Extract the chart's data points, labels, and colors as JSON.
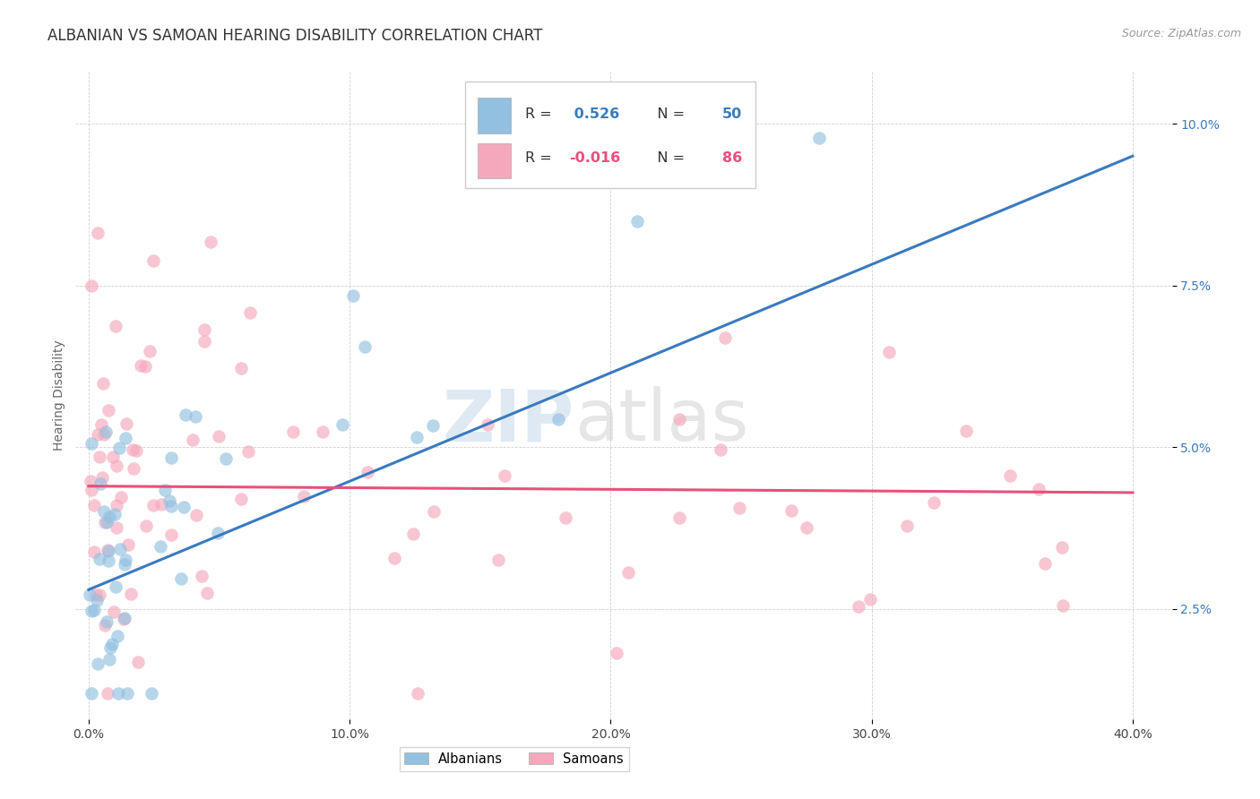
{
  "title": "ALBANIAN VS SAMOAN HEARING DISABILITY CORRELATION CHART",
  "source": "Source: ZipAtlas.com",
  "ylabel": "Hearing Disability",
  "xlabel_vals": [
    0.0,
    0.1,
    0.2,
    0.3,
    0.4
  ],
  "ylabel_vals": [
    0.025,
    0.05,
    0.075,
    0.1
  ],
  "xlim": [
    -0.005,
    0.415
  ],
  "ylim": [
    0.008,
    0.108
  ],
  "albanian_R": 0.526,
  "albanian_N": 50,
  "samoan_R": -0.016,
  "samoan_N": 86,
  "albanian_color": "#92c0e0",
  "samoan_color": "#f5a8bc",
  "albanian_line_color": "#3a7abf",
  "samoan_line_color": "#e8507a",
  "legend_label_albanian": "Albanians",
  "legend_label_samoan": "Samoans",
  "title_fontsize": 12,
  "source_fontsize": 9,
  "axis_label_fontsize": 10,
  "tick_fontsize": 10,
  "background_color": "#ffffff",
  "grid_color": "#cccccc",
  "watermark_zip_color": "#c5d8ea",
  "watermark_atlas_color": "#c8c8c8"
}
